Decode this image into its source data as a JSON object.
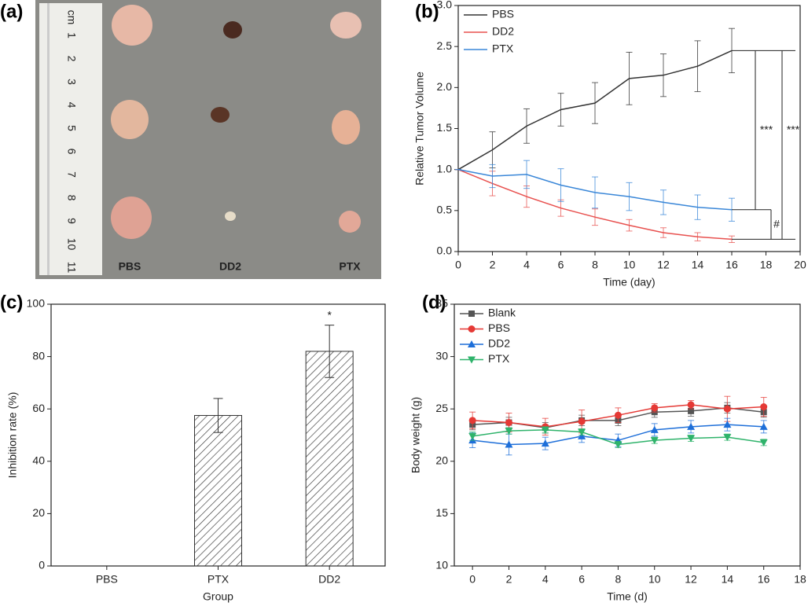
{
  "photo": {
    "label": "(a)",
    "ruler_unit": "cm",
    "ruler_numbers": [
      1,
      2,
      3,
      4,
      5,
      6,
      7,
      8,
      9,
      10,
      11
    ],
    "groups": [
      "PBS",
      "DD2",
      "PTX"
    ]
  },
  "chart_data": [
    {
      "type": "line",
      "panel": "(b)",
      "x_label": "Time (day)",
      "y_label": "Relative Tumor Volume",
      "x": [
        0,
        2,
        4,
        6,
        8,
        10,
        12,
        14,
        16
      ],
      "xlim": [
        0,
        20
      ],
      "xticks": [
        0,
        2,
        4,
        6,
        8,
        10,
        12,
        14,
        16,
        18,
        20
      ],
      "ylim": [
        0,
        3
      ],
      "yticks": [
        {
          "value": 0,
          "label": "0.0"
        },
        0.5,
        {
          "value": 1,
          "label": "1.0"
        },
        1.5,
        {
          "value": 2,
          "label": "2.0"
        },
        2.5,
        {
          "value": 3,
          "label": "3.0"
        }
      ],
      "legend": "upper left",
      "series": [
        {
          "name": "PBS",
          "color": "#333333",
          "values": [
            1.0,
            1.24,
            1.53,
            1.73,
            1.81,
            2.11,
            2.15,
            2.26,
            2.45
          ],
          "errors": [
            0,
            0.22,
            0.21,
            0.2,
            0.25,
            0.32,
            0.26,
            0.31,
            0.27
          ]
        },
        {
          "name": "DD2",
          "color": "#e8514f",
          "values": [
            1.0,
            0.83,
            0.67,
            0.53,
            0.42,
            0.32,
            0.23,
            0.18,
            0.15
          ],
          "errors": [
            0,
            0.15,
            0.13,
            0.1,
            0.1,
            0.07,
            0.06,
            0.05,
            0.04
          ]
        },
        {
          "name": "PTX",
          "color": "#3a87d8",
          "values": [
            1.0,
            0.92,
            0.94,
            0.81,
            0.72,
            0.67,
            0.6,
            0.54,
            0.51
          ],
          "errors": [
            0,
            0.14,
            0.17,
            0.2,
            0.19,
            0.17,
            0.15,
            0.15,
            0.14
          ]
        }
      ],
      "annotations": [
        "***",
        "***",
        "#"
      ]
    },
    {
      "type": "bar",
      "panel": "(c)",
      "x_label": "Group",
      "y_label": "Inhibition rate (%)",
      "categories": [
        "PBS",
        "PTX",
        "DD2"
      ],
      "values": [
        0,
        57.5,
        82
      ],
      "errors": [
        0,
        6.5,
        10
      ],
      "color": "#333333",
      "ylim": [
        0,
        100
      ],
      "yticks": [
        0,
        20,
        40,
        60,
        80,
        100
      ],
      "annotations": [
        "*"
      ]
    },
    {
      "type": "line",
      "panel": "(d)",
      "x_label": "Time (d)",
      "y_label": "Body weight (g)",
      "x": [
        0,
        2,
        4,
        6,
        8,
        10,
        12,
        14,
        16
      ],
      "xlim": [
        -1,
        18
      ],
      "xticks": [
        0,
        2,
        4,
        6,
        8,
        10,
        12,
        14,
        16,
        18
      ],
      "ylim": [
        10,
        35
      ],
      "yticks": [
        10,
        15,
        20,
        25,
        30,
        35
      ],
      "legend": "upper left",
      "series": [
        {
          "name": "Blank",
          "color": "#555555",
          "marker": "square",
          "values": [
            23.5,
            23.7,
            23.2,
            23.9,
            23.9,
            24.7,
            24.8,
            25.1,
            24.7
          ],
          "errors": [
            0.5,
            0.5,
            0.5,
            0.5,
            0.5,
            0.5,
            0.5,
            0.5,
            0.5
          ]
        },
        {
          "name": "PBS",
          "color": "#e53935",
          "marker": "circle",
          "values": [
            23.9,
            23.7,
            23.3,
            23.8,
            24.4,
            25.1,
            25.4,
            25.0,
            25.2
          ],
          "errors": [
            0.8,
            0.9,
            0.8,
            1.1,
            0.7,
            0.4,
            0.4,
            1.2,
            0.9
          ]
        },
        {
          "name": "DD2",
          "color": "#1e6fd9",
          "marker": "triangle-up",
          "values": [
            22.0,
            21.6,
            21.7,
            22.4,
            22.0,
            23.0,
            23.3,
            23.5,
            23.3
          ],
          "errors": [
            0.7,
            1.0,
            0.6,
            0.6,
            0.6,
            0.6,
            0.6,
            0.6,
            0.6
          ]
        },
        {
          "name": "PTX",
          "color": "#2fb36b",
          "marker": "triangle-down",
          "values": [
            22.4,
            22.9,
            23.0,
            22.8,
            21.6,
            22.0,
            22.2,
            22.3,
            21.8
          ],
          "errors": [
            0.4,
            0.3,
            0.3,
            0.3,
            0.3,
            0.3,
            0.3,
            0.3,
            0.3
          ]
        }
      ]
    }
  ]
}
